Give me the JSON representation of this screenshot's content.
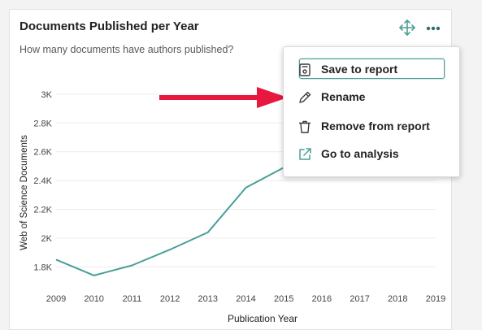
{
  "card": {
    "title": "Documents Published per Year",
    "subtitle": "How many documents have authors published?",
    "icons": {
      "move": "move-arrows-icon",
      "more": "more-options-icon"
    }
  },
  "menu": {
    "items": [
      {
        "label": "Save to report",
        "icon": "save-icon",
        "focused": true
      },
      {
        "label": "Rename",
        "icon": "pencil-icon"
      },
      {
        "label": "Remove from report",
        "icon": "trash-icon"
      },
      {
        "label": "Go to analysis",
        "icon": "external-link-icon"
      }
    ]
  },
  "annotation": {
    "arrow_color": "#e8173d",
    "points_to": "Rename"
  },
  "colors": {
    "accent": "#4b9e96",
    "line": "#4a9e98",
    "arrow": "#e8173d"
  },
  "chart_data": {
    "type": "line",
    "xlabel": "Publication Year",
    "ylabel": "Web of Science Documents",
    "x": [
      2009,
      2010,
      2011,
      2012,
      2013,
      2014,
      2015,
      2016,
      2017,
      2018,
      2019
    ],
    "x_tick_labels": [
      "2009",
      "2010",
      "2011",
      "2012",
      "2013",
      "2014",
      "2015",
      "2016",
      "2017",
      "2018",
      "2019"
    ],
    "y_tick_values": [
      1800,
      2000,
      2200,
      2400,
      2600,
      2800,
      3000
    ],
    "y_tick_labels": [
      "1.8K",
      "2K",
      "2.2K",
      "2.4K",
      "2.6K",
      "2.8K",
      "3K"
    ],
    "ylim": [
      1700,
      3050
    ],
    "grid": true,
    "series": [
      {
        "x": [
          2009,
          2010,
          2011,
          2012,
          2013,
          2014,
          2015
        ],
        "values": [
          1850,
          1740,
          1810,
          1920,
          2040,
          2350,
          2490
        ]
      }
    ]
  }
}
